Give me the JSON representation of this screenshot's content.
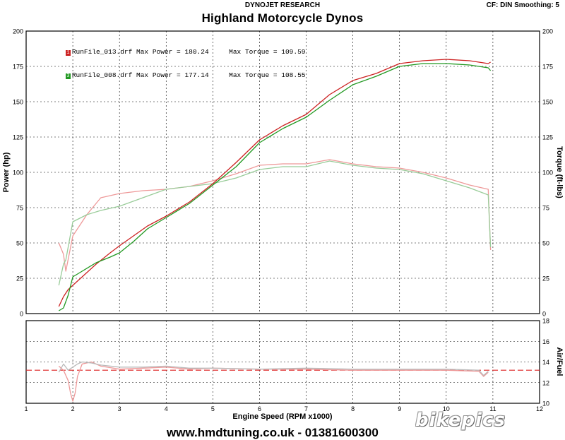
{
  "header": {
    "brand": "DYNOJET RESEARCH",
    "title": "Highland Motorcycle Dynos",
    "settings": "CF: DIN  Smoothing: 5"
  },
  "footer": {
    "contact": "www.hmdtuning.co.uk - 01381600300",
    "watermark": "bikepics"
  },
  "chart_data": [
    {
      "type": "line",
      "title": "Highland Motorcycle Dynos",
      "xlabel": "Engine Speed (RPM x1000)",
      "ylabel_left": "Power (hp)",
      "ylabel_right": "Torque (ft-lbs)",
      "xlim": [
        1,
        12
      ],
      "ylim_left": [
        0,
        200
      ],
      "ylim_right": [
        0,
        200
      ],
      "x_ticks": [
        "1",
        "2",
        "3",
        "4",
        "5",
        "6",
        "7",
        "8",
        "9",
        "10",
        "11",
        "12"
      ],
      "y_ticks": [
        "0",
        "25",
        "50",
        "75",
        "100",
        "125",
        "150",
        "175",
        "200"
      ],
      "grid": true,
      "legend_position": "top-left",
      "legend": [
        {
          "badge": "1",
          "text": "RunFile_013.drf Max Power = 180.24     Max Torque = 109.59",
          "color": "#cc2222"
        },
        {
          "badge": "3",
          "text": "RunFile_008.drf Max Power = 177.14     Max Torque = 108.55",
          "color": "#229922"
        }
      ],
      "series": [
        {
          "name": "RunFile_013.drf",
          "quantity": "power",
          "color": "#cc2222",
          "x": [
            1.7,
            1.8,
            1.9,
            2.0,
            2.2,
            2.5,
            2.8,
            3.0,
            3.3,
            3.6,
            4.0,
            4.5,
            5.0,
            5.5,
            6.0,
            6.5,
            7.0,
            7.5,
            8.0,
            8.5,
            9.0,
            9.5,
            10.0,
            10.5,
            10.9,
            10.95
          ],
          "y": [
            5,
            12,
            17,
            20,
            26,
            35,
            43,
            48,
            55,
            62,
            69,
            79,
            92,
            107,
            123,
            133,
            141,
            155,
            165,
            170,
            177,
            179,
            180,
            179,
            177,
            178
          ]
        },
        {
          "name": "RunFile_008.drf",
          "quantity": "power",
          "color": "#229922",
          "x": [
            1.7,
            1.8,
            1.9,
            2.0,
            2.2,
            2.5,
            2.8,
            3.0,
            3.3,
            3.6,
            4.0,
            4.5,
            5.0,
            5.5,
            6.0,
            6.5,
            7.0,
            7.5,
            8.0,
            8.5,
            9.0,
            9.5,
            10.0,
            10.5,
            10.9,
            10.95
          ],
          "y": [
            2,
            4,
            13,
            26,
            30,
            36,
            40,
            43,
            51,
            60,
            68,
            78,
            91,
            104,
            121,
            131,
            139,
            151,
            162,
            168,
            175,
            177,
            177,
            176,
            174,
            172
          ]
        },
        {
          "name": "RunFile_013.drf",
          "quantity": "torque",
          "color": "#ee9999",
          "x": [
            1.7,
            1.8,
            1.85,
            2.0,
            2.3,
            2.6,
            3.0,
            3.5,
            4.0,
            4.5,
            5.0,
            5.5,
            6.0,
            6.5,
            7.0,
            7.5,
            8.0,
            8.5,
            9.0,
            9.5,
            10.0,
            10.5,
            10.9,
            10.95
          ],
          "y": [
            50,
            42,
            30,
            55,
            70,
            82,
            85,
            87,
            88,
            90,
            94,
            99,
            105,
            106,
            106,
            109,
            106,
            104,
            103,
            100,
            96,
            91,
            88,
            45
          ],
          "right_axis": true
        },
        {
          "name": "RunFile_008.drf",
          "quantity": "torque",
          "color": "#99cc99",
          "x": [
            1.7,
            1.8,
            1.85,
            2.0,
            2.3,
            2.6,
            3.0,
            3.5,
            4.0,
            4.5,
            5.0,
            5.5,
            6.0,
            6.5,
            7.0,
            7.5,
            8.0,
            8.5,
            9.0,
            9.5,
            10.0,
            10.5,
            10.9,
            10.95
          ],
          "y": [
            20,
            35,
            38,
            65,
            70,
            73,
            76,
            82,
            88,
            90,
            92,
            96,
            102,
            104,
            104,
            108,
            105,
            103,
            102,
            99,
            94,
            89,
            84,
            47
          ],
          "right_axis": true
        }
      ]
    },
    {
      "type": "line",
      "xlabel": "Engine Speed (RPM x1000)",
      "ylabel_right": "Air/Fuel",
      "xlim": [
        1,
        12
      ],
      "ylim": [
        10,
        18
      ],
      "y_ticks": [
        "10",
        "12",
        "14",
        "16",
        "18"
      ],
      "grid": true,
      "reference_line": {
        "y": 13.2,
        "color": "#dd2222",
        "style": "dashed"
      },
      "series": [
        {
          "name": "RunFile_013.drf",
          "color": "#ee9999",
          "x": [
            1.7,
            1.8,
            1.9,
            1.95,
            2.0,
            2.05,
            2.1,
            2.2,
            2.4,
            2.6,
            3.0,
            3.5,
            4.0,
            4.5,
            5.0,
            6.0,
            7.0,
            8.0,
            9.0,
            10.0,
            10.7,
            10.8,
            10.9
          ],
          "y": [
            13.6,
            13.2,
            12.2,
            11.0,
            10.2,
            11.0,
            12.6,
            13.8,
            14.0,
            13.6,
            13.3,
            13.4,
            13.5,
            13.3,
            13.4,
            13.3,
            13.3,
            13.2,
            13.2,
            13.2,
            13.1,
            12.6,
            13.0
          ]
        },
        {
          "name": "RunFile_008.drf",
          "color": "#bbbbbb",
          "x": [
            1.7,
            1.8,
            1.9,
            2.0,
            2.1,
            2.2,
            2.4,
            2.6,
            3.0,
            3.5,
            4.0,
            4.5,
            5.0,
            6.0,
            7.0,
            8.0,
            9.0,
            10.0,
            10.7,
            10.8,
            10.9
          ],
          "y": [
            13.0,
            13.8,
            13.2,
            13.5,
            13.8,
            14.0,
            13.9,
            13.7,
            13.5,
            13.5,
            13.6,
            13.4,
            13.4,
            13.3,
            13.4,
            13.3,
            13.3,
            13.3,
            13.2,
            12.7,
            13.1
          ]
        }
      ]
    }
  ]
}
